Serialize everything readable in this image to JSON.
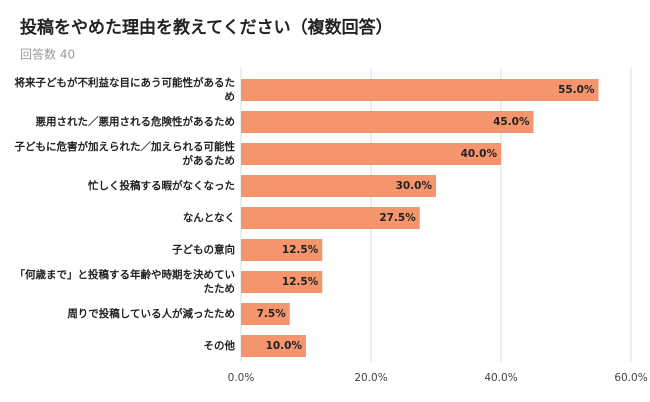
{
  "chart_data": {
    "type": "bar",
    "orientation": "horizontal",
    "title": "投稿をやめた理由を教えてください（複数回答）",
    "subtitle": "回答数 40",
    "categories": [
      "将来子どもが不利益な目にあう可能性があるため",
      "悪用された／悪用される危険性があるため",
      "子どもに危害が加えられた／加えられる可能性があるため",
      "忙しく投稿する暇がなくなった",
      "なんとなく",
      "子どもの意向",
      "「何歳まで」と投稿する年齢や時期を決めていたため",
      "周りで投稿している人が減ったため",
      "その他"
    ],
    "values": [
      55,
      45,
      40,
      30,
      27.5,
      12.5,
      12.5,
      7.5,
      10
    ],
    "value_labels": [
      "55.0%",
      "45.0%",
      "40.0%",
      "30.0%",
      "27.5%",
      "12.5%",
      "12.5%",
      "7.5%",
      "10.0%"
    ],
    "color": "#f4956d",
    "xlim": [
      0,
      60
    ],
    "xticks": [
      {
        "value": 0,
        "label": "0.0%"
      },
      {
        "value": 20,
        "label": "20.0%"
      },
      {
        "value": 40,
        "label": "40.0%"
      },
      {
        "value": 60,
        "label": "60.0%"
      }
    ],
    "grid": true
  }
}
